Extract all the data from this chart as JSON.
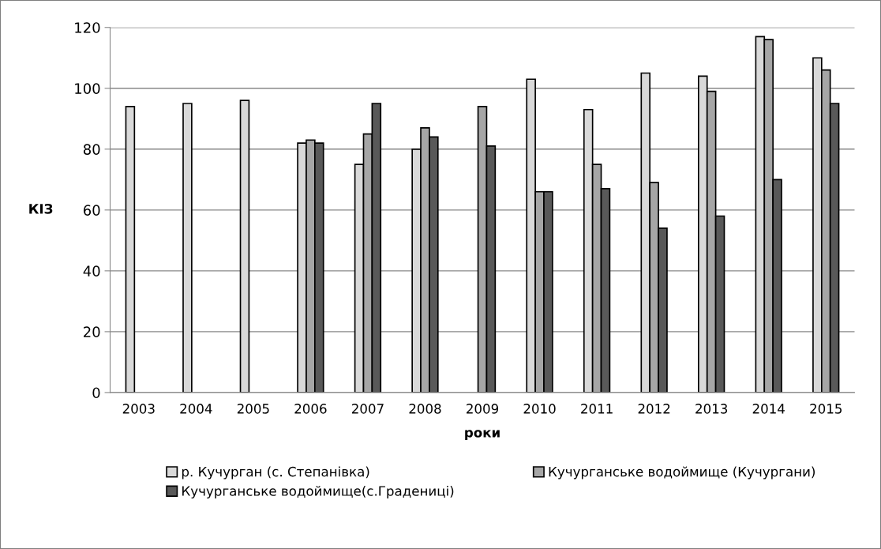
{
  "chart_data": {
    "type": "bar",
    "xlabel": "роки",
    "ylabel": "КІЗ",
    "categories": [
      "2003",
      "2004",
      "2005",
      "2006",
      "2007",
      "2008",
      "2009",
      "2010",
      "2011",
      "2012",
      "2013",
      "2014",
      "2015"
    ],
    "series": [
      {
        "name": "р. Кучурган (с. Степанівка)",
        "color": "#d9d9d9",
        "values": [
          94,
          95,
          96,
          82,
          75,
          80,
          null,
          103,
          93,
          105,
          104,
          117,
          110
        ]
      },
      {
        "name": "Кучурганське водоймище (Кучургани)",
        "color": "#a6a6a6",
        "values": [
          null,
          null,
          null,
          83,
          85,
          87,
          94,
          66,
          75,
          69,
          99,
          116,
          106
        ]
      },
      {
        "name": "Кучурганське водоймище(с.Градениці)",
        "color": "#595959",
        "values": [
          null,
          null,
          null,
          82,
          95,
          84,
          81,
          66,
          67,
          54,
          58,
          70,
          95
        ]
      }
    ],
    "ylim": [
      0,
      120
    ],
    "yticks": [
      0,
      20,
      40,
      60,
      80,
      100,
      120
    ],
    "grid": "y",
    "legend": "bottom"
  }
}
